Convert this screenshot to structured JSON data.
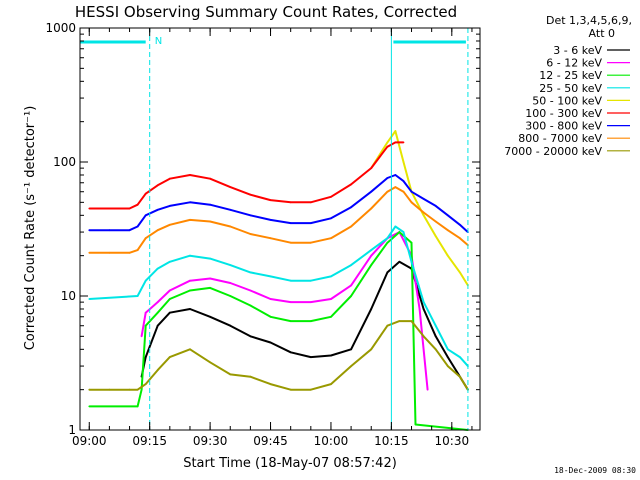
{
  "chart_data": {
    "type": "line",
    "title": "HESSI Observing Summary Count Rates, Corrected",
    "xlabel": "Start Time (18-May-07 08:57:42)",
    "ylabel": "Corrected Count Rate (s⁻¹ detector⁻¹)",
    "y_scale": "log",
    "ylim": [
      1,
      1000
    ],
    "xlim": [
      "08:57:42",
      "10:37:00"
    ],
    "x_ticks": [
      "09:00",
      "09:15",
      "09:30",
      "09:45",
      "10:00",
      "10:15",
      "10:30"
    ],
    "y_ticks": [
      "1",
      "10",
      "100",
      "1000"
    ],
    "legend_header": [
      "Det 1,3,4,5,6,9,",
      "Att 0"
    ],
    "legend_position": "right",
    "attenuator_state_marker": "N",
    "timestamp": "18-Dec-2009 08:30",
    "series": [
      {
        "name": "3 - 6 keV",
        "color": "#000000",
        "x": [
          "09:13",
          "09:14",
          "09:17",
          "09:20",
          "09:25",
          "09:30",
          "09:35",
          "09:40",
          "09:45",
          "09:50",
          "09:55",
          "10:00",
          "10:05",
          "10:10",
          "10:14",
          "10:17",
          "10:20",
          "10:23",
          "10:26",
          "10:29",
          "10:32",
          "10:34"
        ],
        "y": [
          2.5,
          3.5,
          6,
          7.5,
          8,
          7,
          6,
          5,
          4.5,
          3.8,
          3.5,
          3.6,
          4,
          8,
          15,
          18,
          16,
          8,
          5,
          3.5,
          2.5,
          2
        ]
      },
      {
        "name": "6 - 12 keV",
        "color": "#ff00ff",
        "x": [
          "09:13",
          "09:14",
          "09:17",
          "09:20",
          "09:25",
          "09:30",
          "09:35",
          "09:40",
          "09:45",
          "09:50",
          "09:55",
          "10:00",
          "10:05",
          "10:10",
          "10:14",
          "10:17",
          "10:20",
          "10:22",
          "10:24"
        ],
        "y": [
          5,
          7.5,
          9,
          11,
          13,
          13.5,
          12.5,
          11,
          9.5,
          9,
          9,
          9.5,
          12,
          20,
          27,
          30,
          20,
          8,
          2
        ]
      },
      {
        "name": "12 - 25 keV",
        "color": "#00ee00",
        "x": [
          "09:00",
          "09:12",
          "09:13",
          "09:14",
          "09:17",
          "09:20",
          "09:25",
          "09:30",
          "09:35",
          "09:40",
          "09:45",
          "09:50",
          "09:55",
          "10:00",
          "10:05",
          "10:10",
          "10:14",
          "10:17",
          "10:20",
          "10:21",
          "10:34"
        ],
        "y": [
          1.5,
          1.5,
          2,
          6,
          7.5,
          9.5,
          11,
          11.5,
          10,
          8.5,
          7,
          6.5,
          6.5,
          7,
          10,
          17,
          25,
          30,
          25,
          1.1,
          1
        ]
      },
      {
        "name": "25 - 50 keV",
        "color": "#00e5e5",
        "x": [
          "09:00",
          "09:12",
          "09:14",
          "09:17",
          "09:20",
          "09:25",
          "09:30",
          "09:35",
          "09:40",
          "09:45",
          "09:50",
          "09:55",
          "10:00",
          "10:05",
          "10:10",
          "10:14",
          "10:16",
          "10:18",
          "10:20",
          "10:23",
          "10:26",
          "10:29",
          "10:32",
          "10:34"
        ],
        "y": [
          9.5,
          10,
          13,
          16,
          18,
          20,
          19,
          17,
          15,
          14,
          13,
          13,
          14,
          17,
          22,
          27,
          33,
          30,
          18,
          9,
          6,
          4,
          3.5,
          3
        ]
      },
      {
        "name": "50 - 100 keV",
        "color": "#e5e500",
        "x": [
          "10:10",
          "10:14",
          "10:16",
          "10:18",
          "10:20",
          "10:23",
          "10:26",
          "10:29",
          "10:32",
          "10:34"
        ],
        "y": [
          90,
          140,
          170,
          100,
          60,
          40,
          28,
          20,
          15,
          12
        ]
      },
      {
        "name": "100 - 300 keV",
        "color": "#ff0000",
        "x": [
          "09:00",
          "09:05",
          "09:10",
          "09:12",
          "09:14",
          "09:17",
          "09:20",
          "09:25",
          "09:30",
          "09:35",
          "09:40",
          "09:45",
          "09:50",
          "09:55",
          "10:00",
          "10:05",
          "10:10",
          "10:14",
          "10:16",
          "10:18"
        ],
        "y": [
          45,
          45,
          45,
          48,
          58,
          67,
          75,
          80,
          75,
          65,
          57,
          52,
          50,
          50,
          55,
          68,
          90,
          130,
          140,
          140
        ]
      },
      {
        "name": "300 - 800 keV",
        "color": "#0000ff",
        "x": [
          "09:00",
          "09:05",
          "09:10",
          "09:12",
          "09:14",
          "09:17",
          "09:20",
          "09:25",
          "09:30",
          "09:35",
          "09:40",
          "09:45",
          "09:50",
          "09:55",
          "10:00",
          "10:05",
          "10:10",
          "10:14",
          "10:16",
          "10:18",
          "10:20",
          "10:23",
          "10:26",
          "10:29",
          "10:32",
          "10:34"
        ],
        "y": [
          31,
          31,
          31,
          33,
          40,
          44,
          47,
          50,
          48,
          44,
          40,
          37,
          35,
          35,
          38,
          46,
          60,
          76,
          80,
          72,
          60,
          53,
          47,
          40,
          34,
          30
        ]
      },
      {
        "name": "800 - 7000 keV",
        "color": "#ff8800",
        "x": [
          "09:00",
          "09:05",
          "09:10",
          "09:12",
          "09:14",
          "09:17",
          "09:20",
          "09:25",
          "09:30",
          "09:35",
          "09:40",
          "09:45",
          "09:50",
          "09:55",
          "10:00",
          "10:05",
          "10:10",
          "10:14",
          "10:16",
          "10:18",
          "10:20",
          "10:23",
          "10:26",
          "10:29",
          "10:32",
          "10:34"
        ],
        "y": [
          21,
          21,
          21,
          22,
          27,
          31,
          34,
          37,
          36,
          33,
          29,
          27,
          25,
          25,
          27,
          33,
          45,
          60,
          65,
          60,
          50,
          42,
          36,
          31,
          27,
          24
        ]
      },
      {
        "name": "7000 - 20000 keV",
        "color": "#999900",
        "x": [
          "09:00",
          "09:05",
          "09:10",
          "09:12",
          "09:14",
          "09:17",
          "09:20",
          "09:25",
          "09:30",
          "09:35",
          "09:40",
          "09:45",
          "09:50",
          "09:55",
          "10:00",
          "10:05",
          "10:10",
          "10:14",
          "10:17",
          "10:20",
          "10:23",
          "10:26",
          "10:29",
          "10:32",
          "10:34"
        ],
        "y": [
          2,
          2,
          2,
          2,
          2.2,
          2.8,
          3.5,
          4,
          3.2,
          2.6,
          2.5,
          2.2,
          2,
          2,
          2.2,
          3,
          4,
          6,
          6.5,
          6.5,
          5,
          4,
          3,
          2.5,
          2
        ]
      }
    ]
  }
}
